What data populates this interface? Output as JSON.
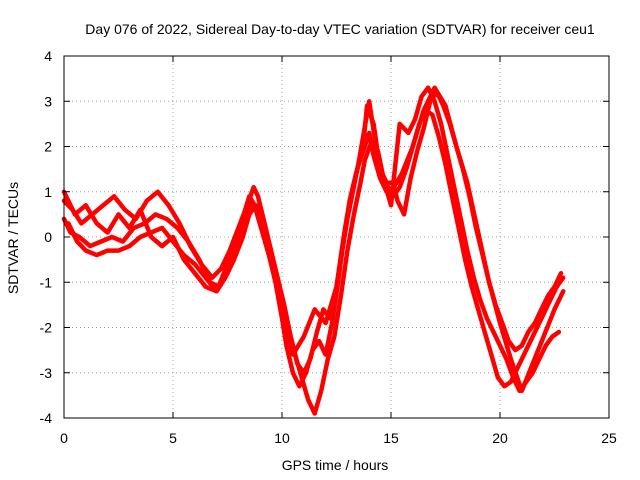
{
  "chart_data": {
    "type": "scatter",
    "title": "Day 076 of 2022, Sidereal Day-to-day VTEC variation (SDTVAR) for receiver ceu1",
    "xlabel": "GPS time / hours",
    "ylabel": "SDTVAR / TECUs",
    "xlim": [
      0,
      25
    ],
    "ylim": [
      -4,
      4
    ],
    "xticks": [
      0,
      5,
      10,
      15,
      20,
      25
    ],
    "yticks": [
      -4,
      -3,
      -2,
      -1,
      0,
      1,
      2,
      3,
      4
    ],
    "grid": true,
    "marker": "plus",
    "color": "#ff0000",
    "series": [
      {
        "x": [
          0.0,
          0.3,
          0.7,
          1.2,
          1.7,
          2.2,
          2.7,
          3.2,
          3.7,
          4.2,
          4.7,
          5.2,
          5.7,
          6.2,
          6.7,
          7.1,
          7.5,
          7.9,
          8.3,
          8.6,
          8.8,
          9.1,
          9.4,
          9.7,
          10.0,
          10.2,
          10.5,
          10.8,
          11.1,
          11.4,
          11.7,
          12.0,
          12.3,
          12.6,
          12.9,
          13.2,
          13.5,
          13.8,
          14.0,
          14.2,
          14.5,
          14.8,
          15.1,
          15.4,
          15.7,
          16.0,
          16.3,
          16.6,
          16.9,
          17.2,
          17.5,
          17.8,
          18.1,
          18.4,
          18.7,
          19.0,
          19.3,
          19.6,
          19.9,
          20.2,
          20.5,
          20.8,
          21.1,
          21.4,
          21.7,
          22.0,
          22.3,
          22.6,
          22.9
        ],
        "y": [
          0.4,
          0.1,
          0.0,
          -0.2,
          -0.1,
          0.0,
          -0.1,
          0.2,
          0.3,
          0.5,
          0.4,
          0.2,
          -0.1,
          -0.5,
          -1.0,
          -1.1,
          -0.8,
          -0.3,
          0.4,
          0.8,
          0.6,
          0.1,
          -0.4,
          -1.0,
          -1.8,
          -2.4,
          -3.0,
          -3.3,
          -3.0,
          -2.5,
          -2.3,
          -2.6,
          -1.9,
          -0.9,
          0.2,
          1.0,
          1.6,
          2.0,
          2.3,
          1.8,
          1.3,
          1.0,
          0.9,
          1.1,
          1.5,
          2.0,
          2.5,
          2.8,
          2.7,
          2.2,
          1.6,
          0.9,
          0.2,
          -0.5,
          -1.1,
          -1.6,
          -2.1,
          -2.6,
          -3.1,
          -3.3,
          -3.2,
          -2.9,
          -2.6,
          -2.3,
          -2.0,
          -1.7,
          -1.4,
          -1.1,
          -0.9
        ]
      },
      {
        "x": [
          0.0,
          0.4,
          0.8,
          1.3,
          1.8,
          2.3,
          2.8,
          3.3,
          3.8,
          4.3,
          4.8,
          5.3,
          5.8,
          6.3,
          6.8,
          7.2,
          7.6,
          8.0,
          8.4,
          8.7,
          8.9,
          9.2,
          9.5,
          9.8,
          10.1,
          10.4,
          10.7,
          11.0,
          11.3,
          11.6,
          11.9,
          12.2,
          12.5,
          12.8,
          13.1,
          13.4,
          13.7,
          13.9,
          14.2,
          14.5,
          14.8,
          15.1,
          15.3,
          15.6,
          15.9,
          16.2,
          16.5,
          16.8,
          17.1,
          17.4,
          17.7,
          18.0,
          18.3,
          18.6,
          18.9,
          19.2,
          19.5,
          19.8,
          20.1,
          20.4,
          20.7,
          21.0,
          21.3,
          21.6,
          21.9,
          22.2,
          22.5,
          22.8
        ],
        "y": [
          0.8,
          0.6,
          0.3,
          0.5,
          0.7,
          0.9,
          0.6,
          0.4,
          0.8,
          1.0,
          0.7,
          0.3,
          -0.2,
          -0.6,
          -0.9,
          -0.7,
          -0.3,
          0.2,
          0.7,
          1.1,
          0.9,
          0.3,
          -0.3,
          -0.9,
          -1.5,
          -2.2,
          -2.8,
          -3.0,
          -2.7,
          -2.1,
          -1.6,
          -1.8,
          -1.1,
          -0.1,
          0.8,
          1.4,
          1.9,
          2.9,
          2.5,
          1.5,
          1.2,
          1.2,
          0.8,
          0.5,
          1.3,
          1.9,
          2.4,
          3.0,
          3.2,
          2.9,
          2.5,
          2.0,
          1.5,
          0.9,
          0.2,
          -0.4,
          -1.0,
          -1.5,
          -1.9,
          -2.3,
          -2.5,
          -2.4,
          -2.1,
          -1.9,
          -1.6,
          -1.3,
          -1.1,
          -0.8
        ]
      },
      {
        "x": [
          0.2,
          0.6,
          1.0,
          1.5,
          2.0,
          2.5,
          3.0,
          3.5,
          4.0,
          4.5,
          5.0,
          5.5,
          6.0,
          6.5,
          7.0,
          7.4,
          7.8,
          8.2,
          8.5,
          8.8,
          9.1,
          9.4,
          9.7,
          10.0,
          10.3,
          10.6,
          10.9,
          11.2,
          11.5,
          11.8,
          12.1,
          12.4,
          12.7,
          13.0,
          13.3,
          13.6,
          13.8,
          14.1,
          14.4,
          14.7,
          15.0,
          15.4,
          15.8,
          16.1,
          16.4,
          16.7,
          17.0,
          17.3,
          17.6,
          17.9,
          18.2,
          18.5,
          18.8,
          19.1,
          19.4,
          19.7,
          20.0,
          20.3,
          20.6,
          20.9,
          21.2,
          21.5,
          21.8,
          22.1,
          22.4,
          22.7
        ],
        "y": [
          0.3,
          -0.1,
          -0.3,
          -0.4,
          -0.3,
          -0.3,
          -0.2,
          0.0,
          0.1,
          0.2,
          -0.1,
          -0.4,
          -0.6,
          -0.9,
          -1.2,
          -0.9,
          -0.5,
          0.0,
          0.5,
          0.7,
          0.4,
          -0.2,
          -0.8,
          -1.4,
          -2.0,
          -2.6,
          -3.1,
          -3.6,
          -3.9,
          -3.4,
          -2.7,
          -2.2,
          -1.3,
          -0.3,
          0.5,
          1.2,
          1.7,
          2.1,
          1.9,
          1.2,
          0.7,
          2.5,
          2.3,
          2.6,
          3.1,
          3.3,
          3.0,
          2.5,
          1.8,
          1.1,
          0.4,
          -0.3,
          -0.9,
          -1.4,
          -1.8,
          -2.1,
          -2.4,
          -2.7,
          -3.1,
          -3.4,
          -3.2,
          -3.0,
          -2.7,
          -2.4,
          -2.2,
          -2.1
        ]
      },
      {
        "x": [
          0.0,
          0.5,
          1.0,
          1.5,
          2.0,
          2.5,
          3.0,
          3.5,
          4.0,
          4.5,
          5.0,
          5.5,
          6.0,
          6.5,
          7.0,
          7.5,
          8.0,
          8.5,
          9.0,
          9.5,
          10.0,
          10.5,
          11.0,
          11.5,
          12.0,
          12.5,
          13.0,
          13.5,
          14.0,
          14.5,
          15.0,
          15.5,
          16.0,
          16.5,
          17.0,
          17.5,
          18.0,
          18.5,
          19.0,
          19.5,
          20.0,
          20.5,
          21.0,
          21.5,
          22.0,
          22.5,
          22.9
        ],
        "y": [
          1.0,
          0.5,
          0.7,
          0.3,
          0.1,
          0.5,
          0.2,
          0.6,
          0.0,
          -0.2,
          0.0,
          -0.5,
          -0.8,
          -1.1,
          -1.2,
          -0.6,
          0.1,
          0.9,
          0.5,
          -0.5,
          -1.6,
          -2.6,
          -2.2,
          -1.6,
          -1.9,
          -1.1,
          0.4,
          1.6,
          3.0,
          1.4,
          1.0,
          1.4,
          2.0,
          2.8,
          3.3,
          2.9,
          2.0,
          1.2,
          0.1,
          -1.0,
          -1.9,
          -2.7,
          -3.4,
          -2.8,
          -2.2,
          -1.6,
          -1.2
        ]
      }
    ]
  }
}
